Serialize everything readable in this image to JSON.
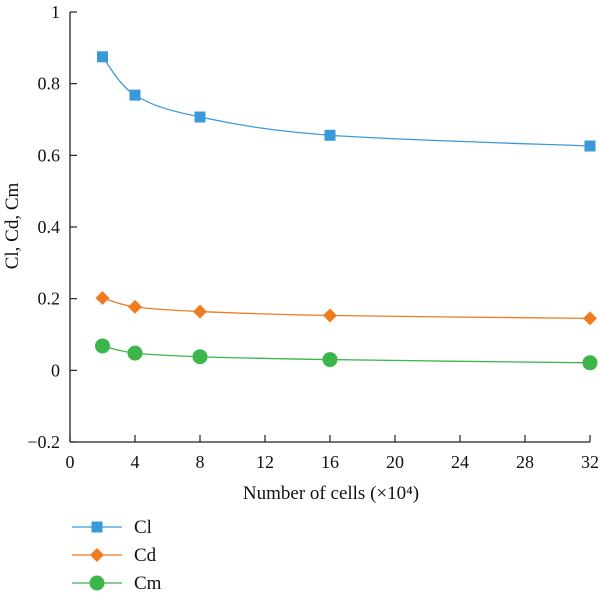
{
  "chart_data": {
    "type": "line",
    "xlabel": "Number of cells (×10⁴)",
    "ylabel": "Cl, Cd, Cm",
    "xlim": [
      0,
      32
    ],
    "ylim": [
      -0.2,
      1
    ],
    "x_ticks": [
      0,
      4,
      8,
      12,
      16,
      20,
      24,
      28,
      32
    ],
    "y_ticks": [
      -0.2,
      0,
      0.2,
      0.4,
      0.6,
      0.8,
      1
    ],
    "y_tick_labels": [
      "−0.2",
      "0",
      "0.2",
      "0.4",
      "0.6",
      "0.8",
      "1"
    ],
    "grid": false,
    "legend_position": "bottom-left, below plot",
    "x": [
      2,
      4,
      8,
      16,
      32
    ],
    "series": [
      {
        "name": "Cl",
        "values": [
          0.875,
          0.768,
          0.707,
          0.656,
          0.626
        ],
        "color": "#3a9ad9",
        "marker": "square"
      },
      {
        "name": "Cd",
        "values": [
          0.202,
          0.177,
          0.164,
          0.153,
          0.145
        ],
        "color": "#f07c22",
        "marker": "diamond"
      },
      {
        "name": "Cm",
        "values": [
          0.068,
          0.048,
          0.038,
          0.03,
          0.021
        ],
        "color": "#3cb54a",
        "marker": "circle"
      }
    ]
  }
}
